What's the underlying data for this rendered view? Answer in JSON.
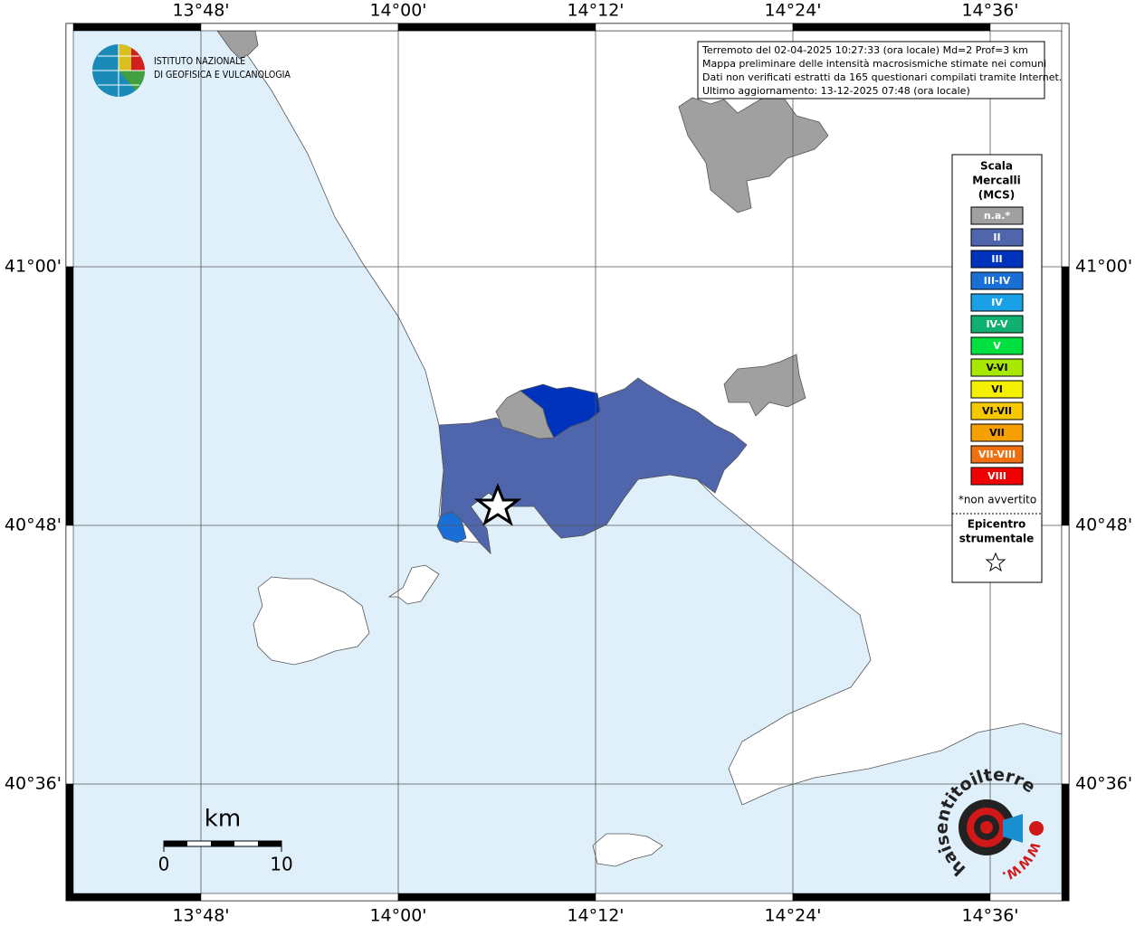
{
  "info_box": [
    "Terremoto del 02-04-2025 10:27:33 (ora locale) Md=2 Prof=3 km",
    "Mappa preliminare delle intensità macrosismiche stimate nei comuni",
    "Dati non verificati estratti da 165 questionari compilati tramite Internet.",
    "Ultimo aggiornamento: 13-12-2025 07:48 (ora locale)"
  ],
  "map": {
    "lon_labels": [
      "13°48'",
      "14°00'",
      "14°12'",
      "14°24'",
      "14°36'"
    ],
    "lat_labels": [
      "41°00'",
      "40°48'",
      "40°36'"
    ]
  },
  "legend": {
    "title": [
      "Scala",
      "Mercalli",
      "(MCS)"
    ],
    "items": [
      {
        "label": "n.a.*",
        "color": "#a0a0a0"
      },
      {
        "label": "II",
        "color": "#4f66ad"
      },
      {
        "label": "III",
        "color": "#0033bb"
      },
      {
        "label": "III-IV",
        "color": "#1a6fd6"
      },
      {
        "label": "IV",
        "color": "#1aa0e6"
      },
      {
        "label": "IV-V",
        "color": "#10b070"
      },
      {
        "label": "V",
        "color": "#00e040"
      },
      {
        "label": "V-VI",
        "color": "#a8e800"
      },
      {
        "label": "VI",
        "color": "#f5f000"
      },
      {
        "label": "VI-VII",
        "color": "#f5c800"
      },
      {
        "label": "VII",
        "color": "#f5a000"
      },
      {
        "label": "VII-VIII",
        "color": "#f07010"
      },
      {
        "label": "VIII",
        "color": "#f00000"
      }
    ],
    "note": "*non avvertito",
    "epicenter": [
      "Epicentro",
      "strumentale"
    ]
  },
  "scale_bar": {
    "unit": "km",
    "labels": [
      "0",
      "10"
    ]
  },
  "logo": {
    "lines": [
      "ISTITUTO NAZIONALE",
      "DI GEOFISICA E VULCANOLOGIA"
    ]
  },
  "badge": {
    "text": "haisentitoilterremoto.it",
    "prefix": "WWW."
  }
}
